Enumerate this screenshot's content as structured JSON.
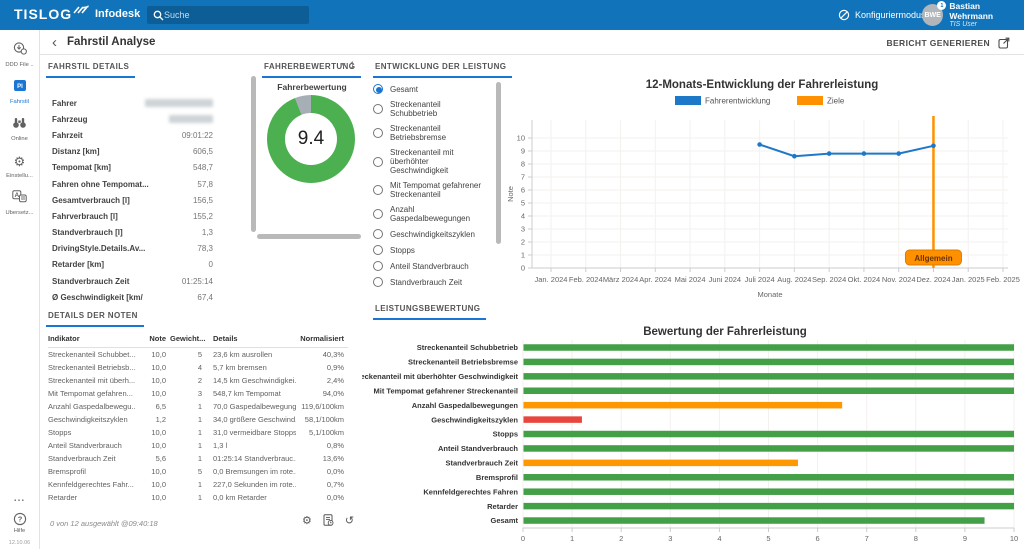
{
  "colors": {
    "header_bg": "#1173b9",
    "accent": "#1976d2",
    "green": "#43a047",
    "donut_green": "#4caf50",
    "orange": "#ff9800",
    "red": "#e8463d",
    "gray_slice": "#a7afb6",
    "line_blue": "#1e78c8"
  },
  "header": {
    "brand": "TISLOG",
    "registered": "®",
    "app": "Infodesk",
    "search_placeholder": "Suche",
    "config_mode_label": "Konfiguriermodus",
    "user": {
      "initials": "BWE",
      "badge": "1",
      "name": "Bastian Wehrmann",
      "role": "TIS User"
    }
  },
  "toolbar": {
    "back": "‹",
    "title": "Fahrstil Analyse",
    "report_button_label": "BERICHT GENERIEREN"
  },
  "sidebar": {
    "items": [
      {
        "id": "ddd-file",
        "label": "DDD File ..",
        "active": false
      },
      {
        "id": "fahrstil",
        "label": "Fahrstil",
        "active": true
      },
      {
        "id": "online",
        "label": "Online",
        "active": false
      },
      {
        "id": "einstellungen",
        "label": "Einstellu...",
        "active": false
      },
      {
        "id": "uebersetzer",
        "label": "Übersetz...",
        "active": false
      }
    ],
    "more_label": "...",
    "help_label": "Hilfe",
    "version": "12.10.06"
  },
  "fahrstil_details": {
    "title": "FAHRSTIL DETAILS",
    "rows": [
      {
        "label": "Fahrer",
        "value": "",
        "redacted": true
      },
      {
        "label": "Fahrzeug",
        "value": "",
        "redacted": true
      },
      {
        "label": "Fahrzeit",
        "value": "09:01:22"
      },
      {
        "label": "Distanz [km]",
        "value": "606,5"
      },
      {
        "label": "Tempomat [km]",
        "value": "548,7"
      },
      {
        "label": "Fahren ohne Tempomat...",
        "value": "57,8"
      },
      {
        "label": "Gesamtverbrauch [l]",
        "value": "156,5"
      },
      {
        "label": "Fahrverbrauch [l]",
        "value": "155,2"
      },
      {
        "label": "Standverbrauch [l]",
        "value": "1,3"
      },
      {
        "label": "DrivingStyle.Details.Av...",
        "value": "78,3"
      },
      {
        "label": "Retarder [km]",
        "value": "0"
      },
      {
        "label": "Standverbrauch Zeit",
        "value": "01:25:14"
      },
      {
        "label": "Ø Geschwindigkeit [km/",
        "value": "67,4"
      }
    ]
  },
  "fahrerbewertung": {
    "title": "FAHRERBEWERTUNG",
    "dropdown_value": "1"
  },
  "entwicklung": {
    "title": "ENTWICKLUNG DER LEISTUNG",
    "options": [
      {
        "label": "Gesamt",
        "selected": true
      },
      {
        "label": "Streckenanteil Schubbetrieb",
        "selected": false
      },
      {
        "label": "Streckenanteil Betriebsbremse",
        "selected": false
      },
      {
        "label": "Streckenanteil mit überhöhter Geschwindigkeit",
        "selected": false
      },
      {
        "label": "Mit Tempomat gefahrener Streckenanteil",
        "selected": false
      },
      {
        "label": "Anzahl Gaspedalbewegungen",
        "selected": false
      },
      {
        "label": "Geschwindigkeitszyklen",
        "selected": false
      },
      {
        "label": "Stopps",
        "selected": false
      },
      {
        "label": "Anteil Standverbrauch",
        "selected": false
      },
      {
        "label": "Standverbrauch Zeit",
        "selected": false
      }
    ]
  },
  "leistungsbewertung": {
    "title": "LEISTUNGSBEWERTUNG"
  },
  "noten": {
    "title": "DETAILS DER NOTEN",
    "columns": [
      "Indikator",
      "Note",
      "Gewicht...",
      "Details",
      "Normalisiert"
    ],
    "rows": [
      [
        "Streckenanteil Schubbet...",
        "10,0",
        "5",
        "23,6 km ausrollen",
        "40,3%"
      ],
      [
        "Streckenanteil Betriebsb...",
        "10,0",
        "4",
        "5,7 km bremsen",
        "0,9%"
      ],
      [
        "Streckenanteil mit überh...",
        "10,0",
        "2",
        "14,5 km Geschwindigkei...",
        "2,4%"
      ],
      [
        "Mit Tempomat gefahren...",
        "10,0",
        "3",
        "548,7 km Tempomat",
        "94,0%"
      ],
      [
        "Anzahl Gaspedalbewegu...",
        "6,5",
        "1",
        "70,0 Gaspedalbewegung...",
        "119,6/100km"
      ],
      [
        "Geschwindigkeitszyklen",
        "1,2",
        "1",
        "34,0 größere Geschwind...",
        "58,1/100km"
      ],
      [
        "Stopps",
        "10,0",
        "1",
        "31,0 vermeidbare Stopps",
        "5,1/100km"
      ],
      [
        "Anteil Standverbrauch",
        "10,0",
        "1",
        "1,3 l",
        "0,8%"
      ],
      [
        "Standverbrauch Zeit",
        "5,6",
        "1",
        "01:25:14 Standverbrauc...",
        "13,6%"
      ],
      [
        "Bremsprofil",
        "10,0",
        "5",
        "0,0 Bremsungen im rote...",
        "0,0%"
      ],
      [
        "Kennfeldgerechtes Fahr...",
        "10,0",
        "1",
        "227,0 Sekunden im rote...",
        "0,7%"
      ],
      [
        "Retarder",
        "10,0",
        "1",
        "0,0 km Retarder",
        "0,0%"
      ]
    ],
    "footer": "0 von 12 ausgewählt @09:40:18"
  },
  "chart_data": [
    {
      "id": "rating_donut",
      "type": "pie",
      "title": "Fahrerbewertung",
      "center_label": "9.4",
      "max": 10,
      "slices": [
        {
          "label": "Note",
          "value": 9.4,
          "color": "#4caf50"
        },
        {
          "label": "Rest",
          "value": 0.6,
          "color": "#a7afb6"
        }
      ]
    },
    {
      "id": "development_line",
      "type": "line",
      "title": "12-Monats-Entwicklung der Fahrerleistung",
      "xlabel": "Monate",
      "ylabel": "Note",
      "ylim": [
        0,
        10
      ],
      "grid": true,
      "legend_position": "top",
      "categories": [
        "Jan. 2024",
        "Feb. 2024",
        "März 2024",
        "Apr. 2024",
        "Mai 2024",
        "Juni 2024",
        "Juli 2024",
        "Aug. 2024",
        "Sep. 2024",
        "Okt. 2024",
        "Nov. 2024",
        "Dez. 2024",
        "Jan. 2025",
        "Feb. 2025"
      ],
      "series": [
        {
          "name": "Fahrerentwicklung",
          "color": "#1e78c8",
          "values": [
            null,
            null,
            null,
            null,
            null,
            null,
            9.5,
            8.6,
            8.8,
            8.8,
            8.8,
            9.4,
            null,
            null
          ]
        },
        {
          "name": "Ziele",
          "color": "#ff9100",
          "type": "vline",
          "at": "Dez. 2024",
          "annotation": "Allgemein"
        }
      ]
    },
    {
      "id": "performance_bar",
      "type": "bar",
      "orientation": "horizontal",
      "title": "Bewertung der Fahrerleistung",
      "xlim": [
        0,
        10
      ],
      "grid": true,
      "categories": [
        "Streckenanteil Schubbetrieb",
        "Streckenanteil Betriebsbremse",
        "Streckenanteil mit überhöhter Geschwindigkeit",
        "Mit Tempomat gefahrener Streckenanteil",
        "Anzahl Gaspedalbewegungen",
        "Geschwindigkeitszyklen",
        "Stopps",
        "Anteil Standverbrauch",
        "Standverbrauch Zeit",
        "Bremsprofil",
        "Kennfeldgerechtes Fahren",
        "Retarder",
        "Gesamt"
      ],
      "values": [
        10,
        10,
        10,
        10,
        6.5,
        1.2,
        10,
        10,
        5.6,
        10,
        10,
        10,
        9.4
      ],
      "colors": [
        "#43a047",
        "#43a047",
        "#43a047",
        "#43a047",
        "#ff9800",
        "#e8463d",
        "#43a047",
        "#43a047",
        "#ff9800",
        "#43a047",
        "#43a047",
        "#43a047",
        "#43a047"
      ]
    }
  ]
}
